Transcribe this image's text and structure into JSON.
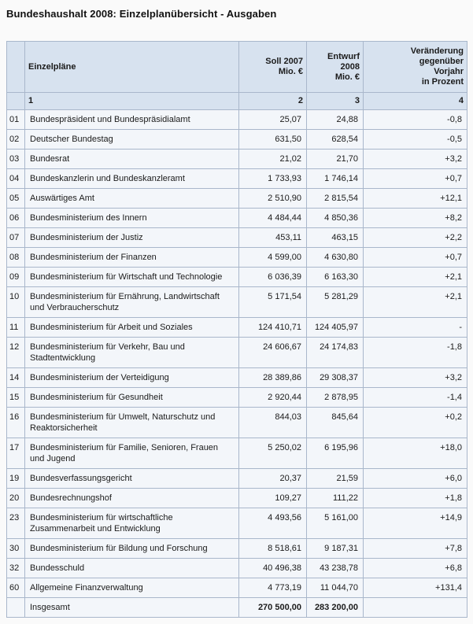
{
  "page_title": "Bundeshaushalt 2008: Einzelplanübersicht - Ausgaben",
  "table": {
    "headers": {
      "nr": "",
      "einzelplaene": "Einzelpläne",
      "soll_2007": "Soll 2007\nMio. €",
      "entwurf_2008": "Entwurf 2008\nMio. €",
      "veraenderung": "Veränderung gegenüber\nVorjahr\nin Prozent"
    },
    "column_numbers": [
      "1",
      "2",
      "3",
      "4"
    ],
    "rows": [
      {
        "nr": "01",
        "name": "Bundespräsident und Bundespräsidialamt",
        "soll": "25,07",
        "entwurf": "24,88",
        "veraenderung": "-0,8"
      },
      {
        "nr": "02",
        "name": "Deutscher Bundestag",
        "soll": "631,50",
        "entwurf": "628,54",
        "veraenderung": "-0,5"
      },
      {
        "nr": "03",
        "name": "Bundesrat",
        "soll": "21,02",
        "entwurf": "21,70",
        "veraenderung": "+3,2"
      },
      {
        "nr": "04",
        "name": "Bundeskanzlerin und Bundeskanzleramt",
        "soll": "1 733,93",
        "entwurf": "1 746,14",
        "veraenderung": "+0,7"
      },
      {
        "nr": "05",
        "name": "Auswärtiges Amt",
        "soll": "2 510,90",
        "entwurf": "2 815,54",
        "veraenderung": "+12,1"
      },
      {
        "nr": "06",
        "name": "Bundesministerium des Innern",
        "soll": "4 484,44",
        "entwurf": "4 850,36",
        "veraenderung": "+8,2"
      },
      {
        "nr": "07",
        "name": "Bundesministerium der Justiz",
        "soll": "453,11",
        "entwurf": "463,15",
        "veraenderung": "+2,2"
      },
      {
        "nr": "08",
        "name": "Bundesministerium der Finanzen",
        "soll": "4 599,00",
        "entwurf": "4 630,80",
        "veraenderung": "+0,7"
      },
      {
        "nr": "09",
        "name": "Bundesministerium für Wirtschaft und Technologie",
        "soll": "6 036,39",
        "entwurf": "6 163,30",
        "veraenderung": "+2,1"
      },
      {
        "nr": "10",
        "name": "Bundesministerium für Ernährung, Landwirtschaft und Verbraucherschutz",
        "soll": "5 171,54",
        "entwurf": "5 281,29",
        "veraenderung": "+2,1"
      },
      {
        "nr": "11",
        "name": "Bundesministerium für Arbeit und Soziales",
        "soll": "124 410,71",
        "entwurf": "124 405,97",
        "veraenderung": "-"
      },
      {
        "nr": "12",
        "name": "Bundesministerium für Verkehr, Bau und Stadtentwicklung",
        "soll": "24 606,67",
        "entwurf": "24 174,83",
        "veraenderung": "-1,8"
      },
      {
        "nr": "14",
        "name": "Bundesministerium der Verteidigung",
        "soll": "28 389,86",
        "entwurf": "29 308,37",
        "veraenderung": "+3,2"
      },
      {
        "nr": "15",
        "name": "Bundesministerium für Gesundheit",
        "soll": "2 920,44",
        "entwurf": "2 878,95",
        "veraenderung": "-1,4"
      },
      {
        "nr": "16",
        "name": "Bundesministerium für Umwelt, Naturschutz und Reaktorsicherheit",
        "soll": "844,03",
        "entwurf": "845,64",
        "veraenderung": "+0,2"
      },
      {
        "nr": "17",
        "name": "Bundesministerium für Familie, Senioren, Frauen und Jugend",
        "soll": "5 250,02",
        "entwurf": "6 195,96",
        "veraenderung": "+18,0"
      },
      {
        "nr": "19",
        "name": "Bundesverfassungsgericht",
        "soll": "20,37",
        "entwurf": "21,59",
        "veraenderung": "+6,0"
      },
      {
        "nr": "20",
        "name": "Bundesrechnungshof",
        "soll": "109,27",
        "entwurf": "111,22",
        "veraenderung": "+1,8"
      },
      {
        "nr": "23",
        "name": "Bundesministerium für wirtschaftliche Zusammenarbeit und Entwicklung",
        "soll": "4 493,56",
        "entwurf": "5 161,00",
        "veraenderung": "+14,9"
      },
      {
        "nr": "30",
        "name": "Bundesministerium für Bildung und Forschung",
        "soll": "8 518,61",
        "entwurf": "9 187,31",
        "veraenderung": "+7,8"
      },
      {
        "nr": "32",
        "name": "Bundesschuld",
        "soll": "40 496,38",
        "entwurf": "43 238,78",
        "veraenderung": "+6,8"
      },
      {
        "nr": "60",
        "name": "Allgemeine Finanzverwaltung",
        "soll": "4 773,19",
        "entwurf": "11 044,70",
        "veraenderung": "+131,4"
      }
    ],
    "total": {
      "nr": "",
      "name": "Insgesamt",
      "soll": "270 500,00",
      "entwurf": "283 200,00",
      "veraenderung": ""
    }
  },
  "colors": {
    "header_bg": "#d7e2ef",
    "row_bg": "#f3f6fa",
    "border": "#a9b7cb",
    "page_bg": "#fafafa",
    "text": "#1b1b1b"
  }
}
